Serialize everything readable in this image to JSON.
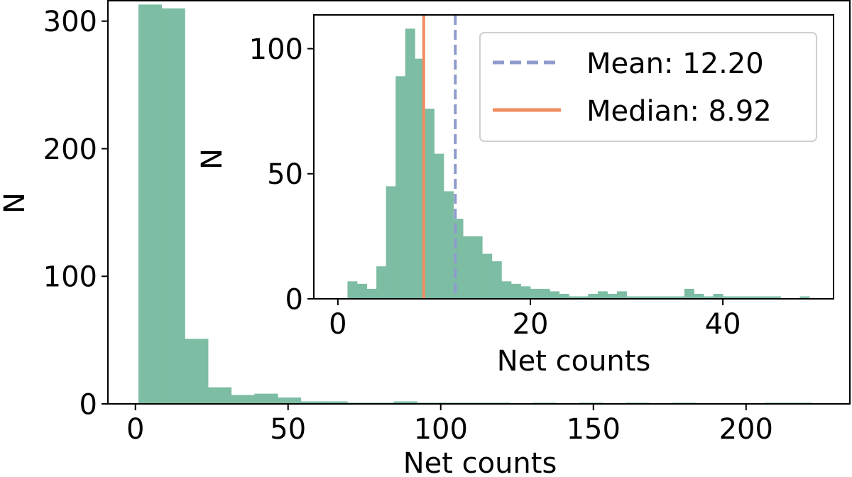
{
  "chart_data": [
    {
      "type": "bar",
      "role": "main",
      "xlabel": "Net counts",
      "ylabel": "N",
      "xlim": [
        -9,
        234
      ],
      "ylim": [
        0,
        316
      ],
      "xticks": [
        0,
        50,
        100,
        150,
        200
      ],
      "yticks": [
        0,
        100,
        200,
        300
      ],
      "bin_edges": [
        1,
        8.6,
        16.2,
        23.8,
        31.4,
        39.0,
        46.6,
        54.2,
        61.8,
        69.4,
        77.0,
        84.6,
        92.2,
        99.8,
        107.4,
        115.0,
        122.6,
        130.2,
        137.8,
        145.4,
        153.0,
        160.6,
        168.2,
        175.8,
        183.4,
        191.0,
        198.6,
        206.2,
        213.8,
        221.4,
        229.0
      ],
      "values": [
        313,
        310,
        51,
        13,
        7,
        8,
        5,
        2,
        2,
        1,
        1,
        2,
        1,
        1,
        1,
        1,
        0,
        1,
        0,
        1,
        0,
        1,
        0,
        1,
        0,
        0,
        0,
        1,
        1,
        0
      ],
      "bar_color": "#7dbda3",
      "grid": false
    },
    {
      "type": "bar",
      "role": "inset",
      "xlabel": "Net counts",
      "ylabel": "N",
      "xlim": [
        -2.5,
        51.5
      ],
      "ylim": [
        0,
        113.5
      ],
      "xticks": [
        0,
        20,
        40
      ],
      "yticks": [
        0,
        50,
        100
      ],
      "bin_edges": [
        1,
        2,
        3,
        4,
        5,
        6,
        7,
        8,
        9,
        10,
        11,
        12,
        13,
        14,
        15,
        16,
        17,
        18,
        19,
        20,
        21,
        22,
        23,
        24,
        25,
        26,
        27,
        28,
        29,
        30,
        31,
        32,
        33,
        34,
        35,
        36,
        37,
        38,
        39,
        40,
        41,
        42,
        43,
        44,
        45,
        46,
        47,
        48,
        49
      ],
      "values": [
        7,
        6,
        4,
        13,
        45,
        89,
        108,
        96,
        76,
        58,
        43,
        32,
        25,
        25,
        18,
        15,
        7,
        6,
        5,
        4,
        4,
        3,
        2,
        1,
        1,
        2,
        3,
        2,
        3,
        1,
        1,
        1,
        1,
        1,
        1,
        4,
        2,
        1,
        2,
        1,
        1,
        1,
        1,
        1,
        1,
        0,
        0,
        1
      ],
      "bar_color": "#7dbda3",
      "grid": false,
      "reference_lines": [
        {
          "label": "Mean: 12.20",
          "x": 12.2,
          "color": "#8e9ccc",
          "style": "dashed"
        },
        {
          "label": "Median: 8.92",
          "x": 8.92,
          "color": "#f08c5f",
          "style": "solid"
        }
      ],
      "legend_position": "top-right"
    }
  ]
}
